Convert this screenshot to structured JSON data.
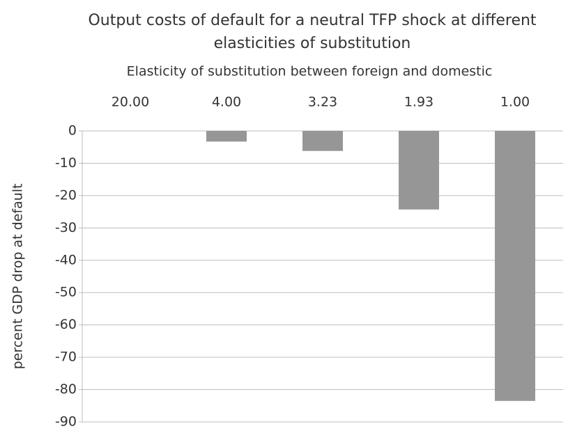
{
  "chart_data": {
    "type": "bar",
    "title": [
      "Output costs of default for a neutral TFP shock at different",
      "elasticities of substitution"
    ],
    "x_label": "Elasticity of substitution between foreign and domestic",
    "y_label": "percent GDP drop at default",
    "categories": [
      "20.00",
      "4.00",
      "3.23",
      "1.93",
      "1.00"
    ],
    "values": [
      0,
      -3.3,
      -6.2,
      -24.3,
      -83.5
    ],
    "color": "#969696",
    "ylim": [
      -90,
      0
    ],
    "yticks": [
      0,
      -10,
      -20,
      -30,
      -40,
      -50,
      -60,
      -70,
      -80,
      -90
    ],
    "grid": true
  }
}
